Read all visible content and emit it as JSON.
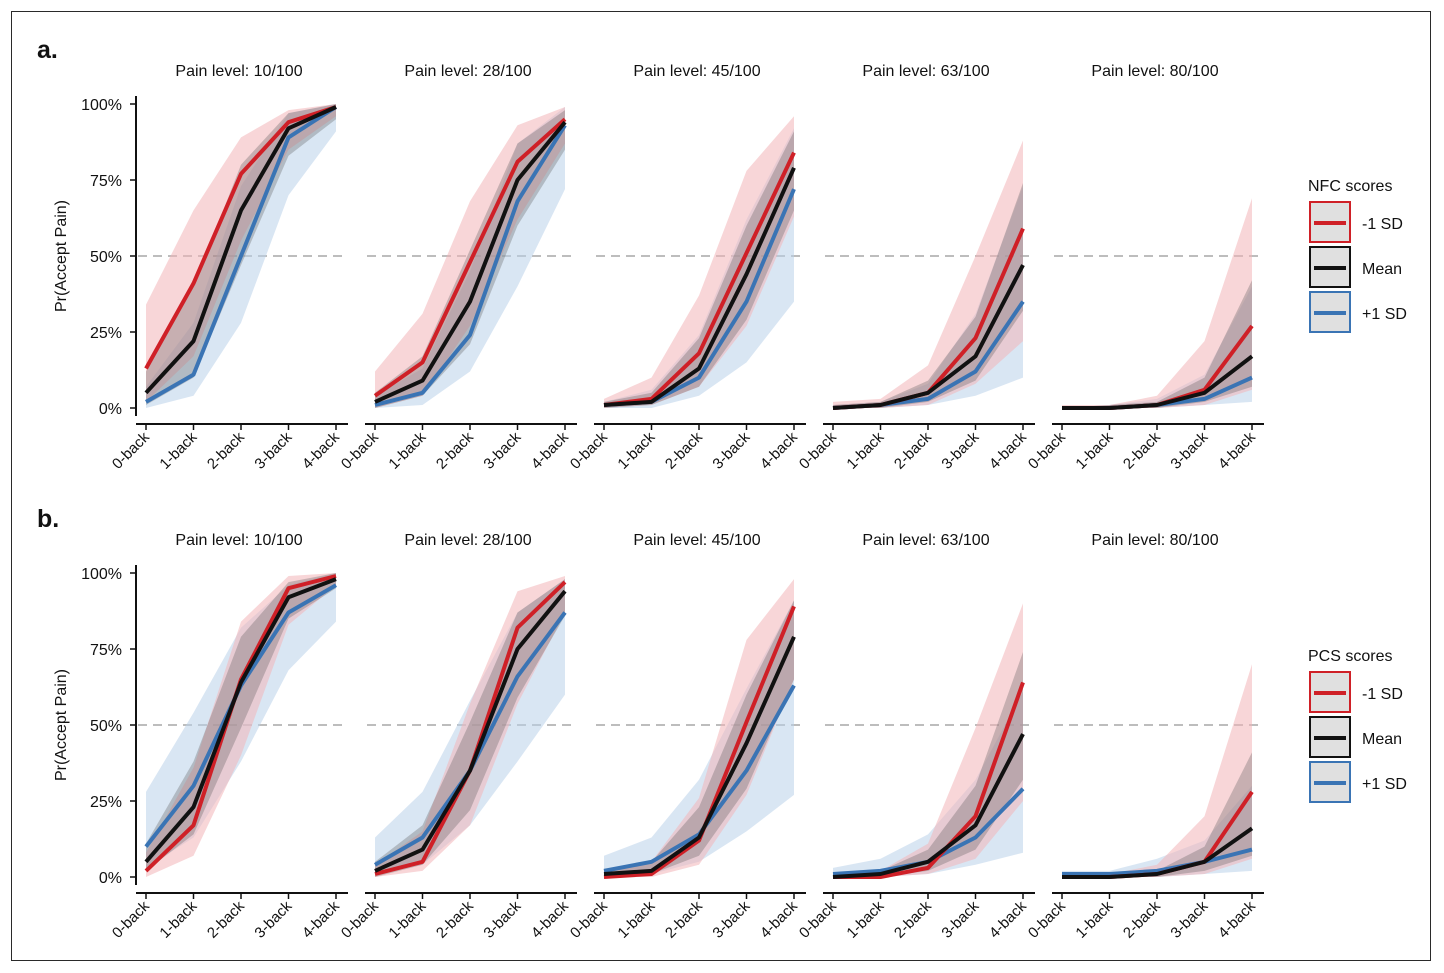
{
  "colors": {
    "minus1sd": "#cf2027",
    "mean": "#111111",
    "plus1sd": "#3a74b4",
    "band_minus1sd": "#f3b5b8",
    "band_mean": "#555555",
    "band_plus1sd": "#b9d2ea",
    "reference_line": "#bdbdbd"
  },
  "chart_data": [
    {
      "type": "line",
      "panel_label": "a.",
      "ylabel": "Pr(Accept Pain)",
      "y_ticks": [
        "0%",
        "25%",
        "50%",
        "75%",
        "100%"
      ],
      "ylim": [
        0,
        1
      ],
      "reference_line_y": 0.5,
      "categories": [
        "0-back",
        "1-back",
        "2-back",
        "3-back",
        "4-back"
      ],
      "legend": {
        "title": "NFC scores",
        "entries": [
          "-1 SD",
          "Mean",
          "+1 SD"
        ],
        "position": "right"
      },
      "facets": [
        {
          "title": "Pain level: 10/100",
          "series": [
            {
              "name": "-1 SD",
              "values": [
                0.13,
                0.41,
                0.77,
                0.94,
                0.99
              ],
              "lower": [
                0.02,
                0.17,
                0.55,
                0.85,
                0.96
              ],
              "upper": [
                0.34,
                0.65,
                0.89,
                0.98,
                1.0
              ]
            },
            {
              "name": "Mean",
              "values": [
                0.05,
                0.22,
                0.65,
                0.92,
                0.99
              ],
              "lower": [
                0.01,
                0.1,
                0.47,
                0.83,
                0.95
              ],
              "upper": [
                0.12,
                0.4,
                0.8,
                0.97,
                1.0
              ]
            },
            {
              "name": "+1 SD",
              "values": [
                0.02,
                0.11,
                0.5,
                0.89,
                0.99
              ],
              "lower": [
                0.0,
                0.04,
                0.28,
                0.7,
                0.91
              ],
              "upper": [
                0.07,
                0.28,
                0.73,
                0.97,
                1.0
              ]
            }
          ]
        },
        {
          "title": "Pain level: 28/100",
          "series": [
            {
              "name": "-1 SD",
              "values": [
                0.04,
                0.15,
                0.48,
                0.81,
                0.95
              ],
              "lower": [
                0.0,
                0.04,
                0.27,
                0.62,
                0.87
              ],
              "upper": [
                0.12,
                0.31,
                0.68,
                0.93,
                0.99
              ]
            },
            {
              "name": "Mean",
              "values": [
                0.02,
                0.09,
                0.35,
                0.75,
                0.94
              ],
              "lower": [
                0.0,
                0.04,
                0.21,
                0.6,
                0.85
              ],
              "upper": [
                0.05,
                0.17,
                0.52,
                0.87,
                0.98
              ]
            },
            {
              "name": "+1 SD",
              "values": [
                0.01,
                0.05,
                0.24,
                0.68,
                0.93
              ],
              "lower": [
                0.0,
                0.01,
                0.12,
                0.4,
                0.72
              ],
              "upper": [
                0.04,
                0.13,
                0.45,
                0.87,
                0.99
              ]
            }
          ]
        },
        {
          "title": "Pain level: 45/100",
          "series": [
            {
              "name": "-1 SD",
              "values": [
                0.01,
                0.03,
                0.18,
                0.51,
                0.84
              ],
              "lower": [
                0.0,
                0.01,
                0.07,
                0.27,
                0.63
              ],
              "upper": [
                0.03,
                0.1,
                0.37,
                0.78,
                0.96
              ]
            },
            {
              "name": "Mean",
              "values": [
                0.01,
                0.02,
                0.13,
                0.44,
                0.79
              ],
              "lower": [
                0.0,
                0.01,
                0.07,
                0.29,
                0.65
              ],
              "upper": [
                0.02,
                0.05,
                0.23,
                0.6,
                0.91
              ]
            },
            {
              "name": "+1 SD",
              "values": [
                0.01,
                0.02,
                0.1,
                0.35,
                0.72
              ],
              "lower": [
                0.0,
                0.0,
                0.04,
                0.15,
                0.35
              ],
              "upper": [
                0.02,
                0.06,
                0.24,
                0.62,
                0.92
              ]
            }
          ]
        },
        {
          "title": "Pain level: 63/100",
          "series": [
            {
              "name": "-1 SD",
              "values": [
                0.0,
                0.01,
                0.05,
                0.23,
                0.59
              ],
              "lower": [
                0.0,
                0.0,
                0.01,
                0.08,
                0.22
              ],
              "upper": [
                0.02,
                0.03,
                0.14,
                0.5,
                0.88
              ]
            },
            {
              "name": "Mean",
              "values": [
                0.0,
                0.01,
                0.05,
                0.17,
                0.47
              ],
              "lower": [
                0.0,
                0.0,
                0.02,
                0.09,
                0.32
              ],
              "upper": [
                0.01,
                0.02,
                0.09,
                0.3,
                0.74
              ]
            },
            {
              "name": "+1 SD",
              "values": [
                0.0,
                0.01,
                0.03,
                0.12,
                0.35
              ],
              "lower": [
                0.0,
                0.0,
                0.01,
                0.04,
                0.1
              ],
              "upper": [
                0.01,
                0.02,
                0.08,
                0.31,
                0.73
              ]
            }
          ]
        },
        {
          "title": "Pain level: 80/100",
          "series": [
            {
              "name": "-1 SD",
              "values": [
                0.0,
                0.0,
                0.01,
                0.06,
                0.27
              ],
              "lower": [
                0.0,
                0.0,
                0.0,
                0.01,
                0.06
              ],
              "upper": [
                0.01,
                0.01,
                0.04,
                0.22,
                0.69
              ]
            },
            {
              "name": "Mean",
              "values": [
                0.0,
                0.0,
                0.01,
                0.05,
                0.17
              ],
              "lower": [
                0.0,
                0.0,
                0.0,
                0.02,
                0.07
              ],
              "upper": [
                0.0,
                0.01,
                0.02,
                0.1,
                0.42
              ]
            },
            {
              "name": "+1 SD",
              "values": [
                0.0,
                0.0,
                0.01,
                0.03,
                0.1
              ],
              "lower": [
                0.0,
                0.0,
                0.0,
                0.01,
                0.02
              ],
              "upper": [
                0.0,
                0.01,
                0.03,
                0.11,
                0.4
              ]
            }
          ]
        }
      ]
    },
    {
      "type": "line",
      "panel_label": "b.",
      "ylabel": "Pr(Accept Pain)",
      "y_ticks": [
        "0%",
        "25%",
        "50%",
        "75%",
        "100%"
      ],
      "ylim": [
        0,
        1
      ],
      "reference_line_y": 0.5,
      "categories": [
        "0-back",
        "1-back",
        "2-back",
        "3-back",
        "4-back"
      ],
      "legend": {
        "title": "PCS scores",
        "entries": [
          "-1 SD",
          "Mean",
          "+1 SD"
        ],
        "position": "right"
      },
      "facets": [
        {
          "title": "Pain level: 10/100",
          "series": [
            {
              "name": "-1 SD",
              "values": [
                0.02,
                0.17,
                0.65,
                0.95,
                0.99
              ],
              "lower": [
                0.0,
                0.07,
                0.4,
                0.83,
                0.96
              ],
              "upper": [
                0.08,
                0.36,
                0.84,
                0.99,
                1.0
              ]
            },
            {
              "name": "Mean",
              "values": [
                0.05,
                0.23,
                0.64,
                0.92,
                0.98
              ],
              "lower": [
                0.02,
                0.14,
                0.49,
                0.85,
                0.95
              ],
              "upper": [
                0.11,
                0.38,
                0.79,
                0.97,
                1.0
              ]
            },
            {
              "name": "+1 SD",
              "values": [
                0.1,
                0.3,
                0.63,
                0.87,
                0.96
              ],
              "lower": [
                0.03,
                0.13,
                0.38,
                0.68,
                0.84
              ],
              "upper": [
                0.28,
                0.54,
                0.82,
                0.96,
                1.0
              ]
            }
          ]
        },
        {
          "title": "Pain level: 28/100",
          "series": [
            {
              "name": "-1 SD",
              "values": [
                0.01,
                0.05,
                0.35,
                0.82,
                0.97
              ],
              "lower": [
                0.0,
                0.02,
                0.17,
                0.57,
                0.87
              ],
              "upper": [
                0.04,
                0.15,
                0.57,
                0.94,
                0.99
              ]
            },
            {
              "name": "Mean",
              "values": [
                0.02,
                0.09,
                0.35,
                0.75,
                0.94
              ],
              "lower": [
                0.0,
                0.04,
                0.22,
                0.59,
                0.86
              ],
              "upper": [
                0.05,
                0.17,
                0.51,
                0.87,
                0.98
              ]
            },
            {
              "name": "+1 SD",
              "values": [
                0.04,
                0.13,
                0.35,
                0.66,
                0.87
              ],
              "lower": [
                0.01,
                0.04,
                0.17,
                0.38,
                0.6
              ],
              "upper": [
                0.13,
                0.28,
                0.58,
                0.87,
                0.98
              ]
            }
          ]
        },
        {
          "title": "Pain level: 45/100",
          "series": [
            {
              "name": "-1 SD",
              "values": [
                0.0,
                0.01,
                0.12,
                0.51,
                0.89
              ],
              "lower": [
                0.0,
                0.0,
                0.04,
                0.27,
                0.65
              ],
              "upper": [
                0.02,
                0.05,
                0.26,
                0.78,
                0.98
              ]
            },
            {
              "name": "Mean",
              "values": [
                0.01,
                0.02,
                0.13,
                0.44,
                0.79
              ],
              "lower": [
                0.0,
                0.01,
                0.07,
                0.29,
                0.65
              ],
              "upper": [
                0.02,
                0.05,
                0.23,
                0.6,
                0.91
              ]
            },
            {
              "name": "+1 SD",
              "values": [
                0.02,
                0.05,
                0.14,
                0.35,
                0.63
              ],
              "lower": [
                0.0,
                0.01,
                0.05,
                0.15,
                0.27
              ],
              "upper": [
                0.07,
                0.13,
                0.32,
                0.62,
                0.91
              ]
            }
          ]
        },
        {
          "title": "Pain level: 63/100",
          "series": [
            {
              "name": "-1 SD",
              "values": [
                0.0,
                0.0,
                0.03,
                0.2,
                0.64
              ],
              "lower": [
                0.0,
                0.0,
                0.01,
                0.06,
                0.25
              ],
              "upper": [
                0.01,
                0.02,
                0.11,
                0.49,
                0.9
              ]
            },
            {
              "name": "Mean",
              "values": [
                0.0,
                0.01,
                0.05,
                0.17,
                0.47
              ],
              "lower": [
                0.0,
                0.0,
                0.02,
                0.09,
                0.32
              ],
              "upper": [
                0.01,
                0.02,
                0.09,
                0.3,
                0.74
              ]
            },
            {
              "name": "+1 SD",
              "values": [
                0.01,
                0.02,
                0.05,
                0.13,
                0.29
              ],
              "lower": [
                0.0,
                0.0,
                0.01,
                0.04,
                0.08
              ],
              "upper": [
                0.03,
                0.06,
                0.14,
                0.32,
                0.61
              ]
            }
          ]
        },
        {
          "title": "Pain level: 80/100",
          "series": [
            {
              "name": "-1 SD",
              "values": [
                0.0,
                0.0,
                0.01,
                0.05,
                0.28
              ],
              "lower": [
                0.0,
                0.0,
                0.0,
                0.01,
                0.06
              ],
              "upper": [
                0.0,
                0.01,
                0.04,
                0.2,
                0.7
              ]
            },
            {
              "name": "Mean",
              "values": [
                0.0,
                0.0,
                0.01,
                0.05,
                0.16
              ],
              "lower": [
                0.0,
                0.0,
                0.0,
                0.02,
                0.07
              ],
              "upper": [
                0.0,
                0.01,
                0.02,
                0.1,
                0.41
              ]
            },
            {
              "name": "+1 SD",
              "values": [
                0.01,
                0.01,
                0.02,
                0.05,
                0.09
              ],
              "lower": [
                0.0,
                0.0,
                0.0,
                0.01,
                0.02
              ],
              "upper": [
                0.02,
                0.02,
                0.06,
                0.12,
                0.3
              ]
            }
          ]
        }
      ]
    }
  ]
}
